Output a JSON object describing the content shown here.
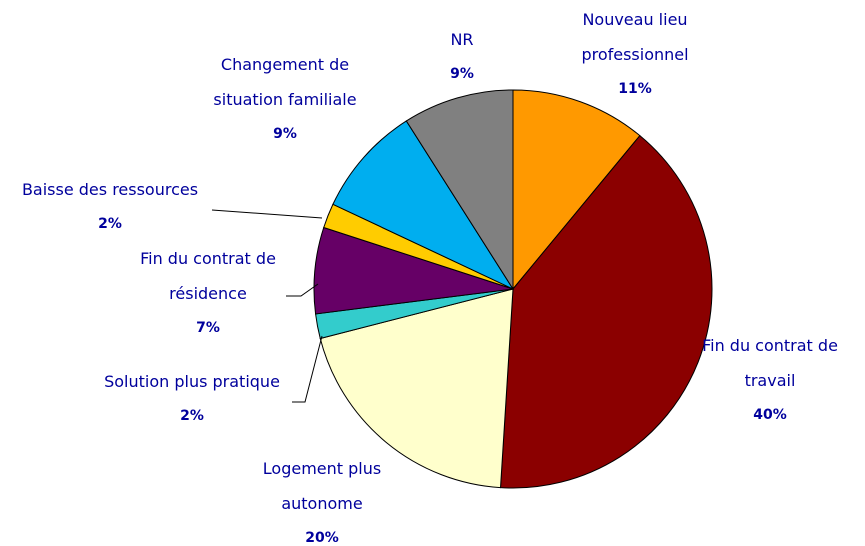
{
  "chart_data": {
    "type": "pie",
    "categories": [
      "Nouveau lieu professionnel",
      "Fin du contrat de travail",
      "Logement plus autonome",
      "Solution plus pratique",
      "Fin du contrat de résidence",
      "Baisse des ressources",
      "Changement de situation familiale",
      "NR"
    ],
    "values": [
      11,
      40,
      20,
      2,
      7,
      2,
      9,
      9
    ],
    "value_labels": [
      "11%",
      "40%",
      "20%",
      "2%",
      "7%",
      "2%",
      "9%",
      "9%"
    ],
    "colors": [
      "#ff9900",
      "#8b0000",
      "#ffffcc",
      "#33cccc",
      "#660066",
      "#ffcc00",
      "#00aeef",
      "#808080"
    ]
  }
}
